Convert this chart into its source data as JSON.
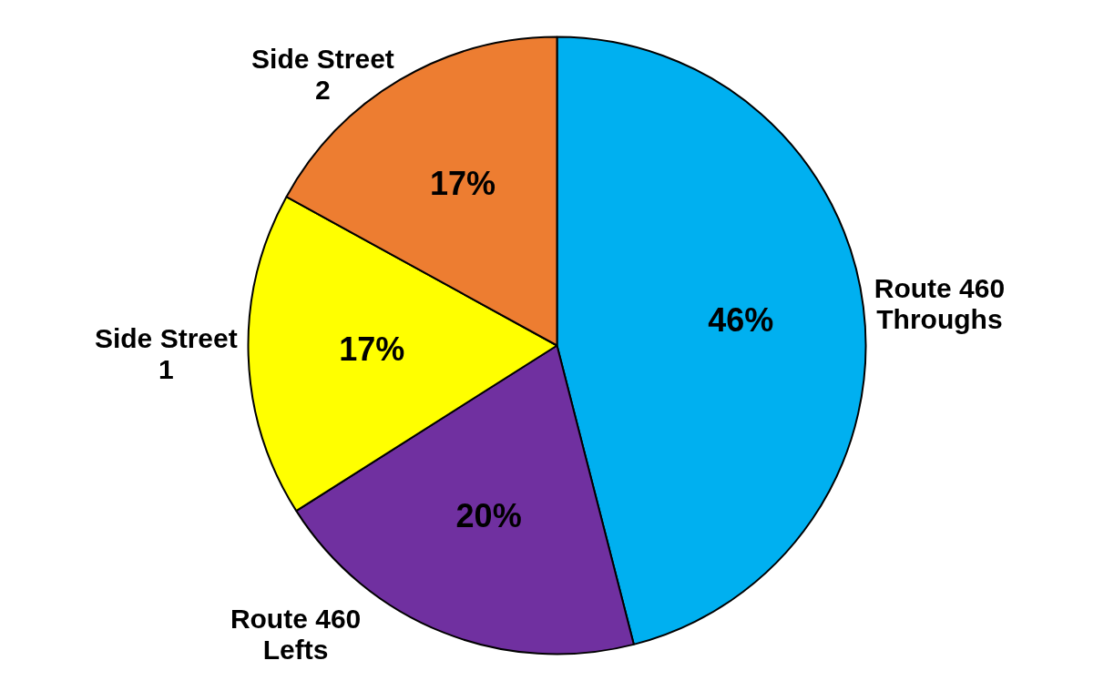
{
  "chart_data": {
    "type": "pie",
    "categories": [
      "Route 460 Throughs",
      "Route 460 Lefts",
      "Side Street 1",
      "Side Street 2"
    ],
    "values": [
      46,
      20,
      17,
      17
    ],
    "colors": [
      "#00b0f0",
      "#7030a0",
      "#ffff00",
      "#ed7d31"
    ],
    "value_labels": [
      "46%",
      "20%",
      "17%",
      "17%"
    ],
    "legend": false
  }
}
